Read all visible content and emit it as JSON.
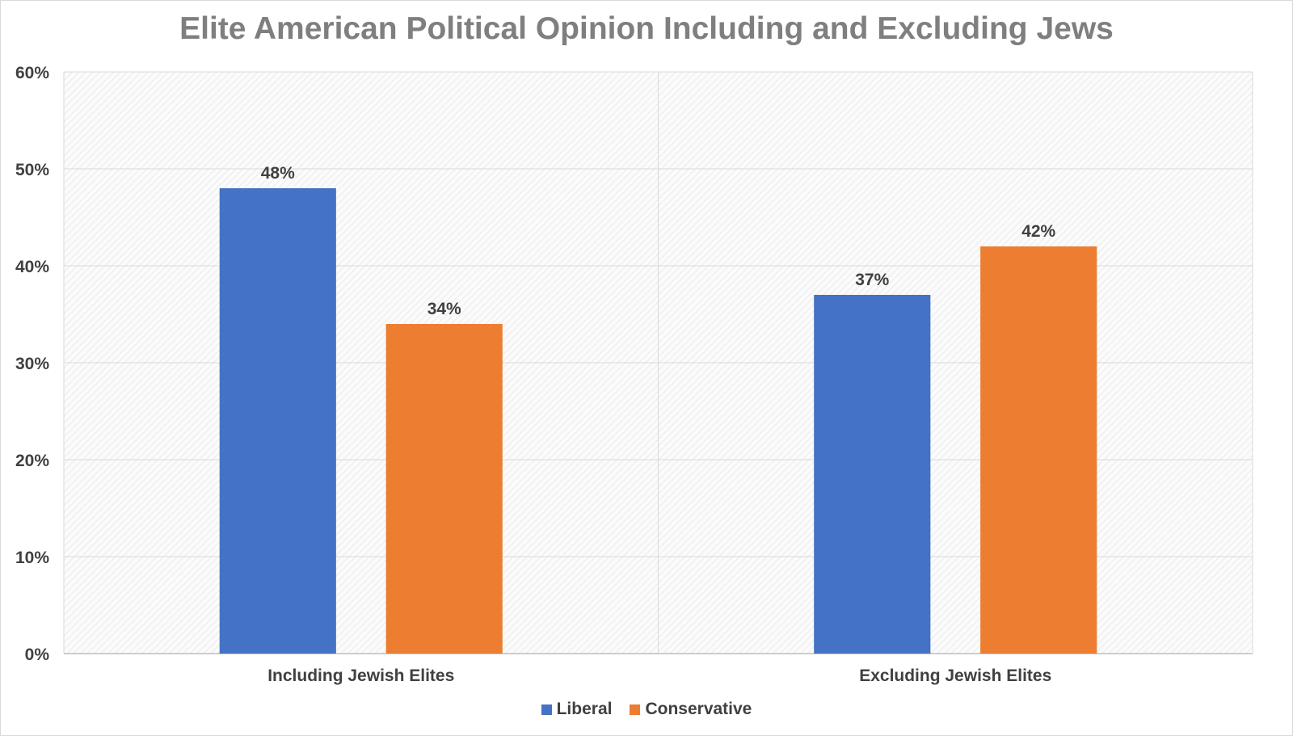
{
  "chart_data": {
    "type": "bar",
    "title": "Elite American Political Opinion Including and Excluding Jews",
    "categories": [
      "Including Jewish Elites",
      "Excluding Jewish Elites"
    ],
    "series": [
      {
        "name": "Liberal",
        "values": [
          48,
          37
        ],
        "labels": [
          "48%",
          "37%"
        ],
        "color": "#4472c4"
      },
      {
        "name": "Conservative",
        "values": [
          34,
          42
        ],
        "labels": [
          "34%",
          "42%"
        ],
        "color": "#ed7d31"
      }
    ],
    "ylim": [
      0,
      60
    ],
    "yticks": [
      {
        "value": 0,
        "label": "0%"
      },
      {
        "value": 10,
        "label": "10%"
      },
      {
        "value": 20,
        "label": "20%"
      },
      {
        "value": 30,
        "label": "30%"
      },
      {
        "value": 40,
        "label": "40%"
      },
      {
        "value": 50,
        "label": "50%"
      },
      {
        "value": 60,
        "label": "60%"
      }
    ],
    "grid": true,
    "legend": "bottom"
  }
}
